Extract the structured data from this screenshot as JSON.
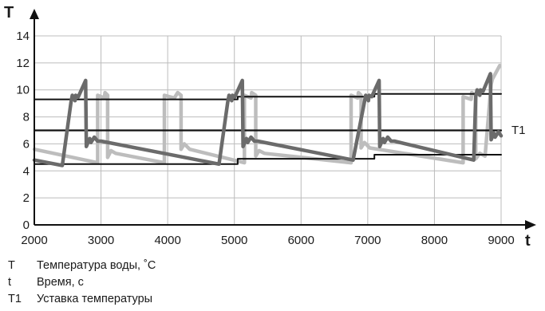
{
  "chart_data": {
    "type": "line",
    "xlabel": "t",
    "ylabel": "T",
    "xlim": [
      2000,
      9000
    ],
    "ylim": [
      0,
      14
    ],
    "xticks": [
      2000,
      3000,
      4000,
      5000,
      6000,
      7000,
      8000,
      9000
    ],
    "yticks": [
      0,
      2,
      4,
      6,
      8,
      10,
      12,
      14
    ],
    "grid": true,
    "series": [
      {
        "name": "T1",
        "color": "#111111",
        "x": [
          2000,
          9000
        ],
        "y": [
          7,
          7
        ]
      },
      {
        "color": "#111111",
        "x": [
          2000,
          5050,
          5050,
          7100,
          7100,
          9000
        ],
        "y": [
          9.3,
          9.3,
          9.5,
          9.5,
          9.7,
          9.7
        ]
      },
      {
        "color": "#111111",
        "x": [
          2000,
          5050,
          5050,
          7100,
          7100,
          9000
        ],
        "y": [
          4.5,
          4.5,
          4.9,
          4.9,
          5.2,
          5.2
        ]
      },
      {
        "color": "#bdbdbd",
        "x": [
          2000,
          2950,
          2950,
          3050,
          3060,
          3100,
          3100,
          3150,
          3220,
          3950,
          3950,
          4100,
          4150,
          4200,
          4200,
          4250,
          4330,
          5150,
          5150,
          5250,
          5260,
          5320,
          5320,
          5370,
          5450,
          6750,
          6750,
          6850,
          6860,
          6900,
          6900,
          6950,
          7030,
          8430,
          8430,
          8550,
          8560,
          8620,
          8620,
          8680,
          8760,
          8850,
          8870,
          8980
        ],
        "y": [
          5.6,
          4.6,
          9.6,
          9.4,
          9.8,
          9.6,
          5.0,
          5.5,
          5.3,
          4.6,
          9.6,
          9.4,
          9.8,
          9.6,
          5.6,
          6.0,
          5.6,
          4.6,
          9.6,
          9.4,
          9.8,
          9.6,
          5.1,
          5.5,
          5.3,
          4.6,
          9.6,
          9.4,
          9.8,
          9.6,
          5.7,
          6.1,
          5.7,
          4.6,
          9.5,
          9.3,
          9.8,
          9.6,
          4.9,
          5.3,
          5.1,
          10.4,
          10.8,
          11.8
        ]
      },
      {
        "color": "#6b6b6b",
        "x": [
          2000,
          2420,
          2550,
          2570,
          2610,
          2620,
          2660,
          2770,
          2780,
          2830,
          2850,
          2900,
          2950,
          3000,
          4770,
          4900,
          4920,
          4960,
          4970,
          5010,
          5120,
          5130,
          5180,
          5200,
          5250,
          5300,
          5350,
          6780,
          6950,
          6970,
          7010,
          7020,
          7060,
          7170,
          7180,
          7230,
          7250,
          7300,
          7350,
          7400,
          8590,
          8620,
          8640,
          8680,
          8690,
          8730,
          8840,
          8850,
          8890,
          8910,
          8960,
          9000
        ],
        "y": [
          4.8,
          4.4,
          9.1,
          9.6,
          9.2,
          9.6,
          9.5,
          10.7,
          5.8,
          6.4,
          6.1,
          6.5,
          6.2,
          6.2,
          4.5,
          9.1,
          9.6,
          9.2,
          9.6,
          9.5,
          10.7,
          5.8,
          6.4,
          6.1,
          6.5,
          6.2,
          6.2,
          4.8,
          9.1,
          9.6,
          9.2,
          9.6,
          9.5,
          10.7,
          5.8,
          6.4,
          6.1,
          6.5,
          6.2,
          6.2,
          4.8,
          9.5,
          10.0,
          9.6,
          10.0,
          9.9,
          11.2,
          6.3,
          6.8,
          6.5,
          6.9,
          6.6
        ]
      }
    ]
  },
  "legend": [
    {
      "symbol": "T",
      "text": "Температура воды, ˚C"
    },
    {
      "symbol": "t",
      "text": "Время, с"
    },
    {
      "symbol": "T1",
      "text": "Уставка температуры"
    }
  ]
}
